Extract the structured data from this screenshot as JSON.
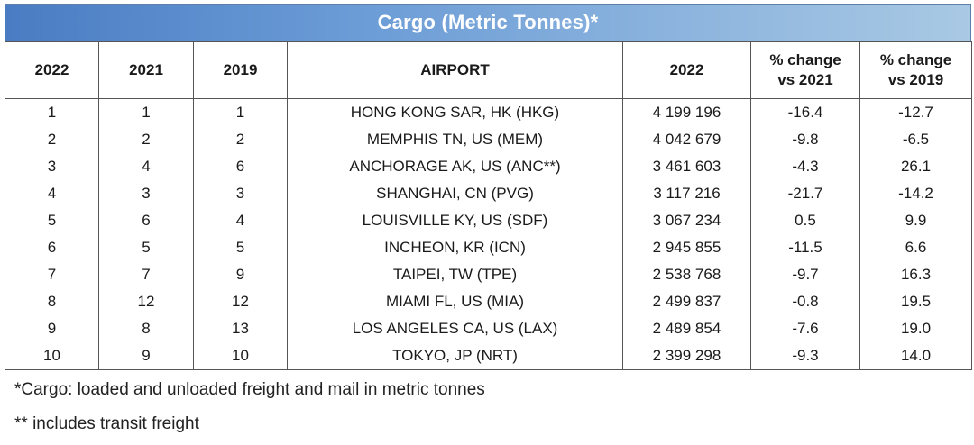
{
  "title": "Cargo (Metric Tonnes)*",
  "table": {
    "headers": [
      "2022",
      "2021",
      "2019",
      "AIRPORT",
      "2022",
      "% change vs 2021",
      "% change vs 2019"
    ],
    "rows": [
      [
        "1",
        "1",
        "1",
        "HONG KONG SAR, HK (HKG)",
        "4 199 196",
        "-16.4",
        "-12.7"
      ],
      [
        "2",
        "2",
        "2",
        "MEMPHIS TN, US (MEM)",
        "4 042 679",
        "-9.8",
        "-6.5"
      ],
      [
        "3",
        "4",
        "6",
        "ANCHORAGE AK, US (ANC**)",
        "3 461 603",
        "-4.3",
        "26.1"
      ],
      [
        "4",
        "3",
        "3",
        "SHANGHAI, CN (PVG)",
        "3 117 216",
        "-21.7",
        "-14.2"
      ],
      [
        "5",
        "6",
        "4",
        "LOUISVILLE KY, US (SDF)",
        "3 067 234",
        "0.5",
        "9.9"
      ],
      [
        "6",
        "5",
        "5",
        "INCHEON, KR (ICN)",
        "2 945 855",
        "-11.5",
        "6.6"
      ],
      [
        "7",
        "7",
        "9",
        "TAIPEI, TW (TPE)",
        "2 538 768",
        "-9.7",
        "16.3"
      ],
      [
        "8",
        "12",
        "12",
        "MIAMI FL, US (MIA)",
        "2 499 837",
        "-0.8",
        "19.5"
      ],
      [
        "9",
        "8",
        "13",
        "LOS ANGELES CA, US (LAX)",
        "2 489 854",
        "-7.6",
        "19.0"
      ],
      [
        "10",
        "9",
        "10",
        "TOKYO, JP (NRT)",
        "2 399 298",
        "-9.3",
        "14.0"
      ]
    ]
  },
  "footnotes": [
    "*Cargo: loaded and unloaded freight and mail in metric tonnes",
    "** includes transit freight"
  ]
}
